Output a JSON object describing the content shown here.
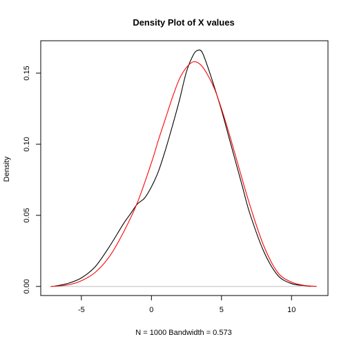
{
  "chart_data": {
    "type": "line",
    "title": "Density Plot of X values",
    "xlabel": "N = 1000   Bandwidth = 0.573",
    "ylabel": "Density",
    "xlim": [
      -7.9,
      12.6
    ],
    "ylim": [
      -0.0064,
      0.1728
    ],
    "x_ticks": [
      -5,
      0,
      5,
      10
    ],
    "x_tick_labels": [
      "-5",
      "0",
      "5",
      "10"
    ],
    "y_ticks": [
      0.0,
      0.05,
      0.1,
      0.15
    ],
    "y_tick_labels": [
      "0.00",
      "0.05",
      "0.10",
      "0.15"
    ],
    "grid": false,
    "baseline_y": 0,
    "baseline_color": "#bebebe",
    "series": [
      {
        "color": "#000000",
        "x": [
          -6.9,
          -6.0,
          -5.0,
          -4.0,
          -3.0,
          -2.0,
          -1.5,
          -1.0,
          -0.5,
          0.0,
          0.5,
          1.0,
          1.5,
          2.0,
          2.5,
          3.0,
          3.3,
          3.6,
          4.0,
          4.5,
          5.0,
          5.5,
          6.0,
          6.5,
          7.0,
          8.0,
          9.0,
          10.0,
          11.0,
          11.4
        ],
        "y": [
          0.0002,
          0.002,
          0.006,
          0.014,
          0.028,
          0.044,
          0.051,
          0.058,
          0.062,
          0.07,
          0.081,
          0.096,
          0.113,
          0.131,
          0.151,
          0.163,
          0.166,
          0.165,
          0.155,
          0.14,
          0.124,
          0.106,
          0.088,
          0.07,
          0.052,
          0.025,
          0.008,
          0.002,
          0.0005,
          0.0001
        ]
      },
      {
        "color": "#ff0000",
        "x": [
          -7.2,
          -6.0,
          -5.0,
          -4.0,
          -3.0,
          -2.0,
          -1.0,
          0.0,
          0.5,
          1.0,
          1.5,
          2.0,
          2.5,
          3.0,
          3.5,
          4.0,
          4.5,
          5.0,
          5.5,
          6.0,
          7.0,
          8.0,
          9.0,
          10.0,
          11.0,
          11.8
        ],
        "y": [
          0.0,
          0.001,
          0.004,
          0.01,
          0.021,
          0.038,
          0.059,
          0.087,
          0.103,
          0.118,
          0.133,
          0.146,
          0.154,
          0.158,
          0.156,
          0.149,
          0.139,
          0.125,
          0.109,
          0.092,
          0.058,
          0.029,
          0.01,
          0.003,
          0.0006,
          0.0001
        ]
      }
    ]
  }
}
